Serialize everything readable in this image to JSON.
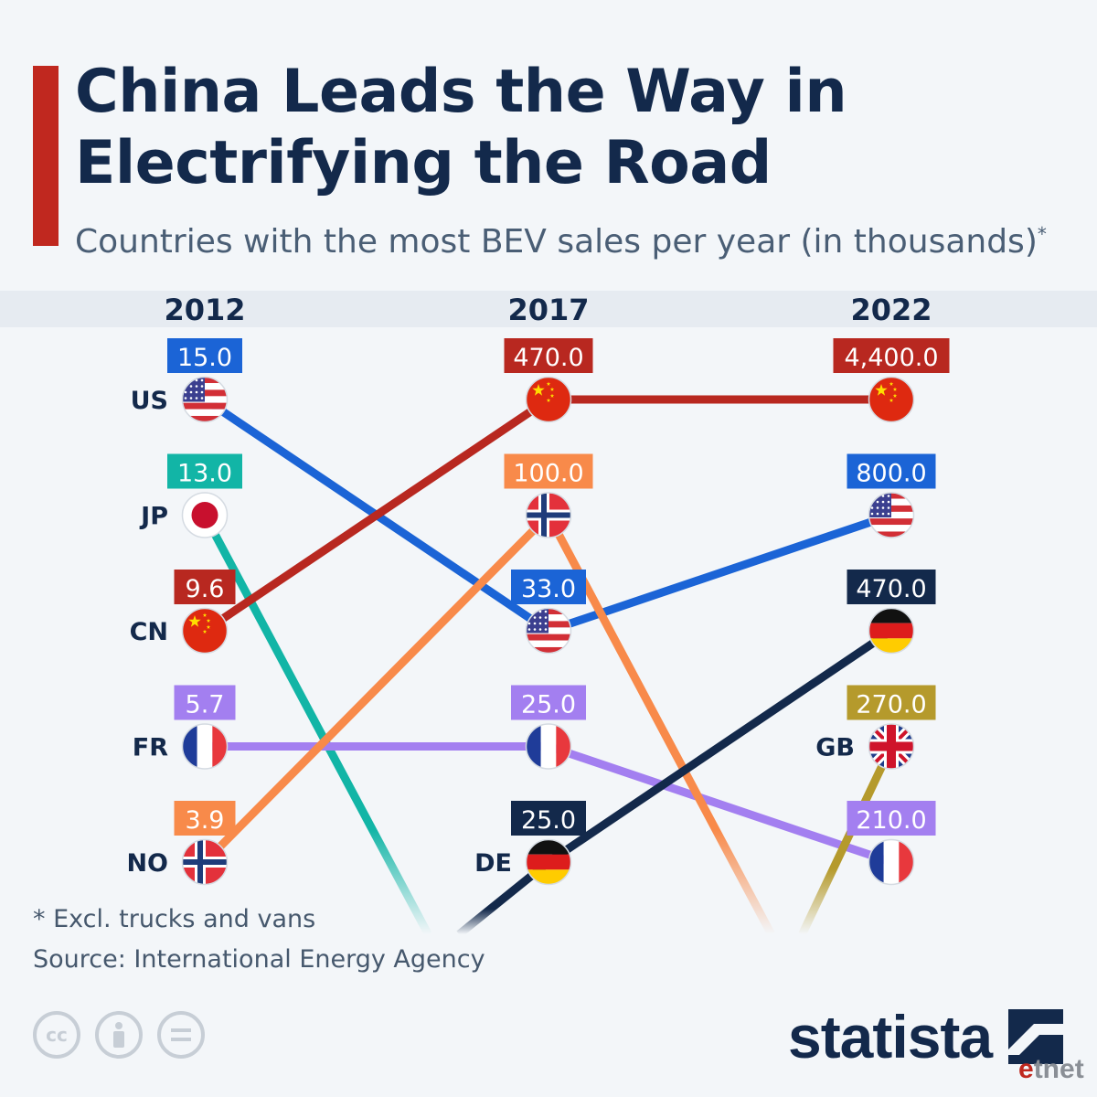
{
  "header": {
    "title": "China Leads the Way in Electrifying the Road",
    "subtitle": "Countries with the most BEV sales per year (in thousands)",
    "subtitle_mark": "*"
  },
  "footer": {
    "footnote": "* Excl. trucks and vans",
    "source": "Source: International Energy Agency",
    "brand": "statista",
    "license_icons": [
      "cc-icon",
      "attribution-icon",
      "no-derivatives-icon"
    ],
    "watermark": "etnet"
  },
  "chart_data": {
    "type": "slope",
    "title": "China Leads the Way in Electrifying the Road",
    "subtitle": "Countries with the most BEV sales per year (in thousands)",
    "x": [
      "2012",
      "2017",
      "2022"
    ],
    "rank_count": 5,
    "series": [
      {
        "code": "US",
        "color": "#1b64d6",
        "flag": "us-flag-icon",
        "points": [
          {
            "year": "2012",
            "rank": 1,
            "value": "15.0"
          },
          {
            "year": "2017",
            "rank": 3,
            "value": "33.0"
          },
          {
            "year": "2022",
            "rank": 2,
            "value": "800.0"
          }
        ]
      },
      {
        "code": "JP",
        "color": "#12b5a6",
        "flag": "jp-flag-icon",
        "points": [
          {
            "year": "2012",
            "rank": 2,
            "value": "13.0"
          }
        ],
        "exits_after": "2012"
      },
      {
        "code": "CN",
        "color": "#b82820",
        "flag": "cn-flag-icon",
        "points": [
          {
            "year": "2012",
            "rank": 3,
            "value": "9.6"
          },
          {
            "year": "2017",
            "rank": 1,
            "value": "470.0"
          },
          {
            "year": "2022",
            "rank": 1,
            "value": "4,400.0"
          }
        ]
      },
      {
        "code": "FR",
        "color": "#a37ff0",
        "flag": "fr-flag-icon",
        "points": [
          {
            "year": "2012",
            "rank": 4,
            "value": "5.7"
          },
          {
            "year": "2017",
            "rank": 4,
            "value": "25.0"
          },
          {
            "year": "2022",
            "rank": 5,
            "value": "210.0"
          }
        ]
      },
      {
        "code": "NO",
        "color": "#f88a4a",
        "flag": "no-flag-icon",
        "points": [
          {
            "year": "2012",
            "rank": 5,
            "value": "3.9"
          },
          {
            "year": "2017",
            "rank": 2,
            "value": "100.0"
          }
        ],
        "exits_after": "2017"
      },
      {
        "code": "DE",
        "color": "#13294b",
        "flag": "de-flag-icon",
        "points": [
          {
            "year": "2017",
            "rank": 5,
            "value": "25.0"
          },
          {
            "year": "2022",
            "rank": 3,
            "value": "470.0"
          }
        ],
        "enters_before": "2017"
      },
      {
        "code": "GB",
        "color": "#b59a2c",
        "flag": "gb-flag-icon",
        "points": [
          {
            "year": "2022",
            "rank": 4,
            "value": "270.0"
          }
        ],
        "enters_before": "2022"
      }
    ],
    "country_labels": [
      {
        "year": "2012",
        "rank": 1,
        "code": "US"
      },
      {
        "year": "2012",
        "rank": 2,
        "code": "JP"
      },
      {
        "year": "2012",
        "rank": 3,
        "code": "CN"
      },
      {
        "year": "2012",
        "rank": 4,
        "code": "FR"
      },
      {
        "year": "2012",
        "rank": 5,
        "code": "NO"
      },
      {
        "year": "2017",
        "rank": 5,
        "code": "DE"
      },
      {
        "year": "2022",
        "rank": 4,
        "code": "GB"
      }
    ]
  }
}
